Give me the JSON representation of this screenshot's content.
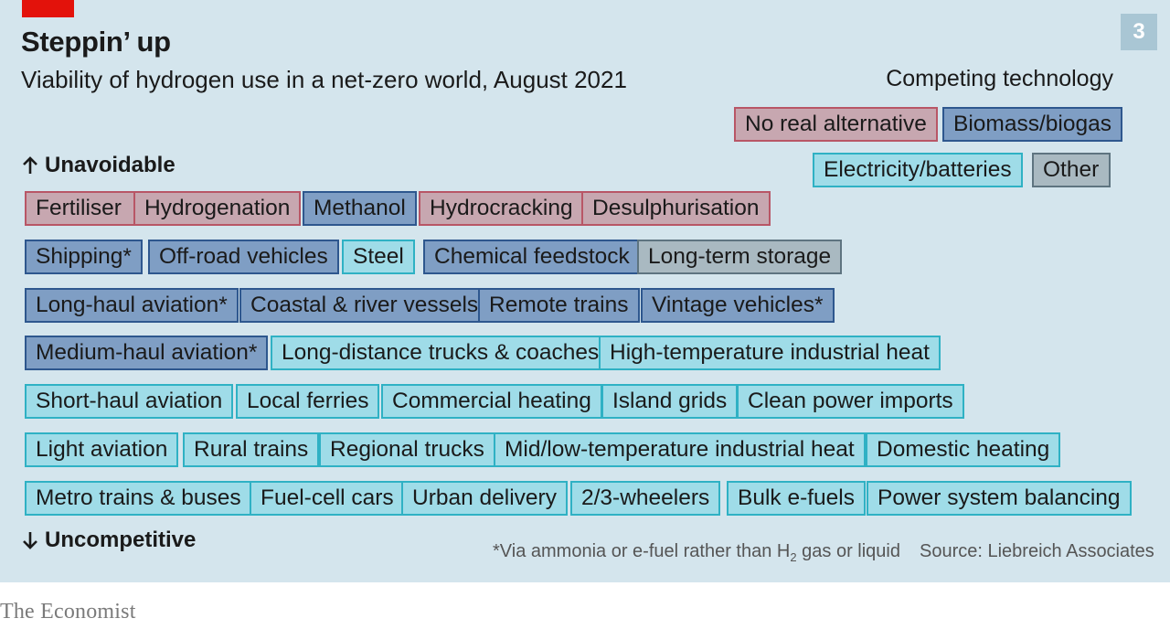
{
  "header": {
    "title": "Steppin’ up",
    "subtitle": "Viability of hydrogen use in a net-zero world, August 2021",
    "chart_number": "3"
  },
  "legend": {
    "title": "Competing technology",
    "items": [
      {
        "label": "No real alternative",
        "category": "red"
      },
      {
        "label": "Biomass/biogas",
        "category": "blue"
      },
      {
        "label": "Electricity/batteries",
        "category": "cyan"
      },
      {
        "label": "Other",
        "category": "grey"
      }
    ]
  },
  "colors": {
    "red": "#c7a7b0",
    "red_border": "#b85666",
    "blue": "#7f9ec4",
    "blue_border": "#2e578e",
    "cyan": "#9fdce8",
    "cyan_border": "#2fb1c4",
    "grey": "#a9b9c1",
    "grey_border": "#5e7480",
    "panel_background": "#d4e5ed",
    "economist_red": "#e3120b"
  },
  "axis": {
    "top_label": "Unavoidable",
    "bottom_label": "Uncompetitive"
  },
  "chart_data": {
    "type": "table",
    "title": "Steppin’ up",
    "subtitle": "Viability of hydrogen use in a net-zero world, August 2021",
    "ylabel_top": "Unavoidable",
    "ylabel_bottom": "Uncompetitive",
    "rows": [
      [
        {
          "label": "Fertiliser",
          "category": "red"
        },
        {
          "label": "Hydrogenation",
          "category": "red"
        },
        {
          "label": "Methanol",
          "category": "blue"
        },
        {
          "label": "Hydrocracking",
          "category": "red"
        },
        {
          "label": "Desulphurisation",
          "category": "red"
        }
      ],
      [
        {
          "label": "Shipping*",
          "category": "blue"
        },
        {
          "label": "Off-road vehicles",
          "category": "blue"
        },
        {
          "label": "Steel",
          "category": "cyan"
        },
        {
          "label": "Chemical feedstock",
          "category": "blue"
        },
        {
          "label": "Long-term storage",
          "category": "grey"
        }
      ],
      [
        {
          "label": "Long-haul aviation*",
          "category": "blue"
        },
        {
          "label": "Coastal & river vessels",
          "category": "blue"
        },
        {
          "label": "Remote trains",
          "category": "blue"
        },
        {
          "label": "Vintage vehicles*",
          "category": "blue"
        }
      ],
      [
        {
          "label": "Medium-haul aviation*",
          "category": "blue"
        },
        {
          "label": "Long-distance trucks & coaches",
          "category": "cyan"
        },
        {
          "label": "High-temperature industrial heat",
          "category": "cyan"
        }
      ],
      [
        {
          "label": "Short-haul aviation",
          "category": "cyan"
        },
        {
          "label": "Local ferries",
          "category": "cyan"
        },
        {
          "label": "Commercial heating",
          "category": "cyan"
        },
        {
          "label": "Island grids",
          "category": "cyan"
        },
        {
          "label": "Clean power imports",
          "category": "cyan"
        }
      ],
      [
        {
          "label": "Light aviation",
          "category": "cyan"
        },
        {
          "label": "Rural trains",
          "category": "cyan"
        },
        {
          "label": "Regional trucks",
          "category": "cyan"
        },
        {
          "label": "Mid/low-temperature industrial heat",
          "category": "cyan"
        },
        {
          "label": "Domestic heating",
          "category": "cyan"
        }
      ],
      [
        {
          "label": "Metro trains & buses",
          "category": "cyan"
        },
        {
          "label": "Fuel-cell cars",
          "category": "cyan"
        },
        {
          "label": "Urban delivery",
          "category": "cyan"
        },
        {
          "label": "2/3-wheelers",
          "category": "cyan"
        },
        {
          "label": "Bulk e-fuels",
          "category": "cyan"
        },
        {
          "label": "Power system balancing",
          "category": "cyan"
        }
      ]
    ]
  },
  "footer": {
    "note_prefix": "*Via ammonia or e-fuel rather than H",
    "note_sub": "2",
    "note_suffix": " gas or liquid",
    "source": "Source: Liebreich Associates",
    "brand": "The Economist"
  }
}
